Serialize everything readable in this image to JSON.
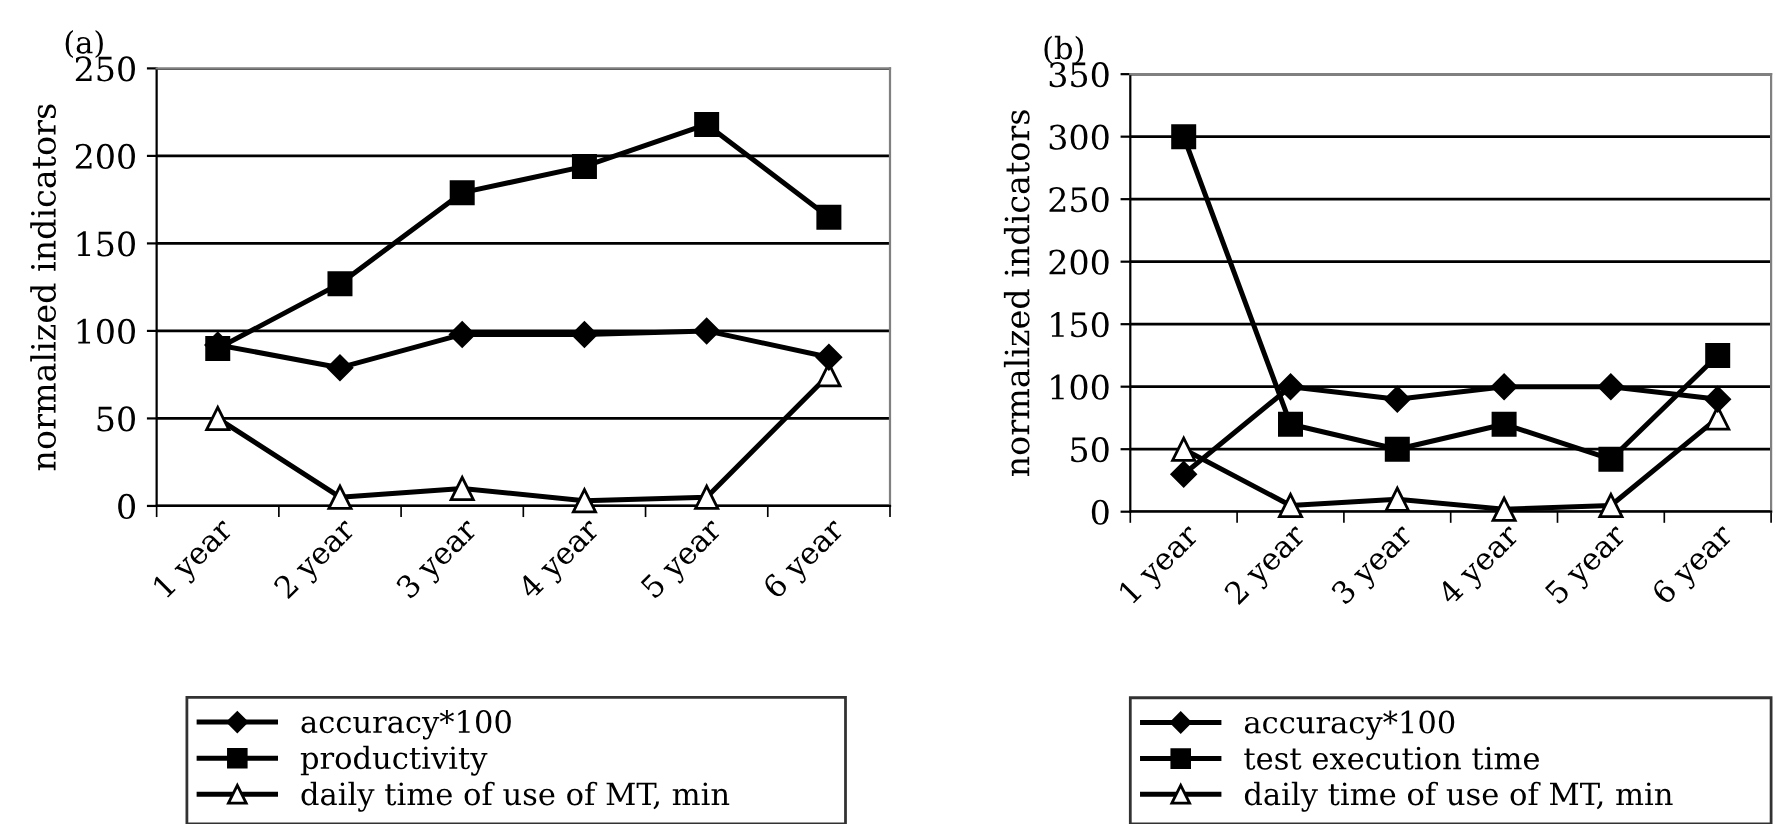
{
  "chart_data": [
    {
      "type": "line",
      "annotations": [
        "(a)"
      ],
      "ylabel": "normalized indicators",
      "categories": [
        "1 year",
        "2 year",
        "3 year",
        "4 year",
        "5 year",
        "6 year"
      ],
      "ylim": [
        0,
        250
      ],
      "yticks": [
        0,
        50,
        100,
        150,
        200,
        250
      ],
      "grid": "y",
      "legend": "bottom",
      "series": [
        {
          "name": "accuracy*100",
          "color": "#000000",
          "marker": "diamond",
          "values": [
            92,
            79,
            98,
            98,
            100,
            85
          ]
        },
        {
          "name": "productivity",
          "color": "#000000",
          "marker": "square",
          "values": [
            90,
            127,
            179,
            194,
            218,
            165
          ]
        },
        {
          "name": "daily time of use of MT, min",
          "color": "#000000",
          "marker": "triangle",
          "values": [
            50,
            5,
            10,
            3,
            5,
            75
          ]
        }
      ]
    },
    {
      "type": "line",
      "annotations": [
        "(b)"
      ],
      "ylabel": "normalized indicators",
      "categories": [
        "1 year",
        "2 year",
        "3 year",
        "4 year",
        "5 year",
        "6 year"
      ],
      "ylim": [
        0,
        350
      ],
      "yticks": [
        0,
        50,
        100,
        150,
        200,
        250,
        300,
        350
      ],
      "grid": "y",
      "legend": "bottom",
      "series": [
        {
          "name": "accuracy*100",
          "color": "#000000",
          "marker": "diamond",
          "values": [
            30,
            100,
            90,
            100,
            100,
            90
          ]
        },
        {
          "name": "test execution time",
          "color": "#000000",
          "marker": "square",
          "values": [
            300,
            70,
            50,
            70,
            42,
            125
          ]
        },
        {
          "name": "daily time of use of MT, min",
          "color": "#000000",
          "marker": "triangle",
          "values": [
            50,
            5,
            10,
            2,
            5,
            75
          ]
        }
      ]
    }
  ]
}
